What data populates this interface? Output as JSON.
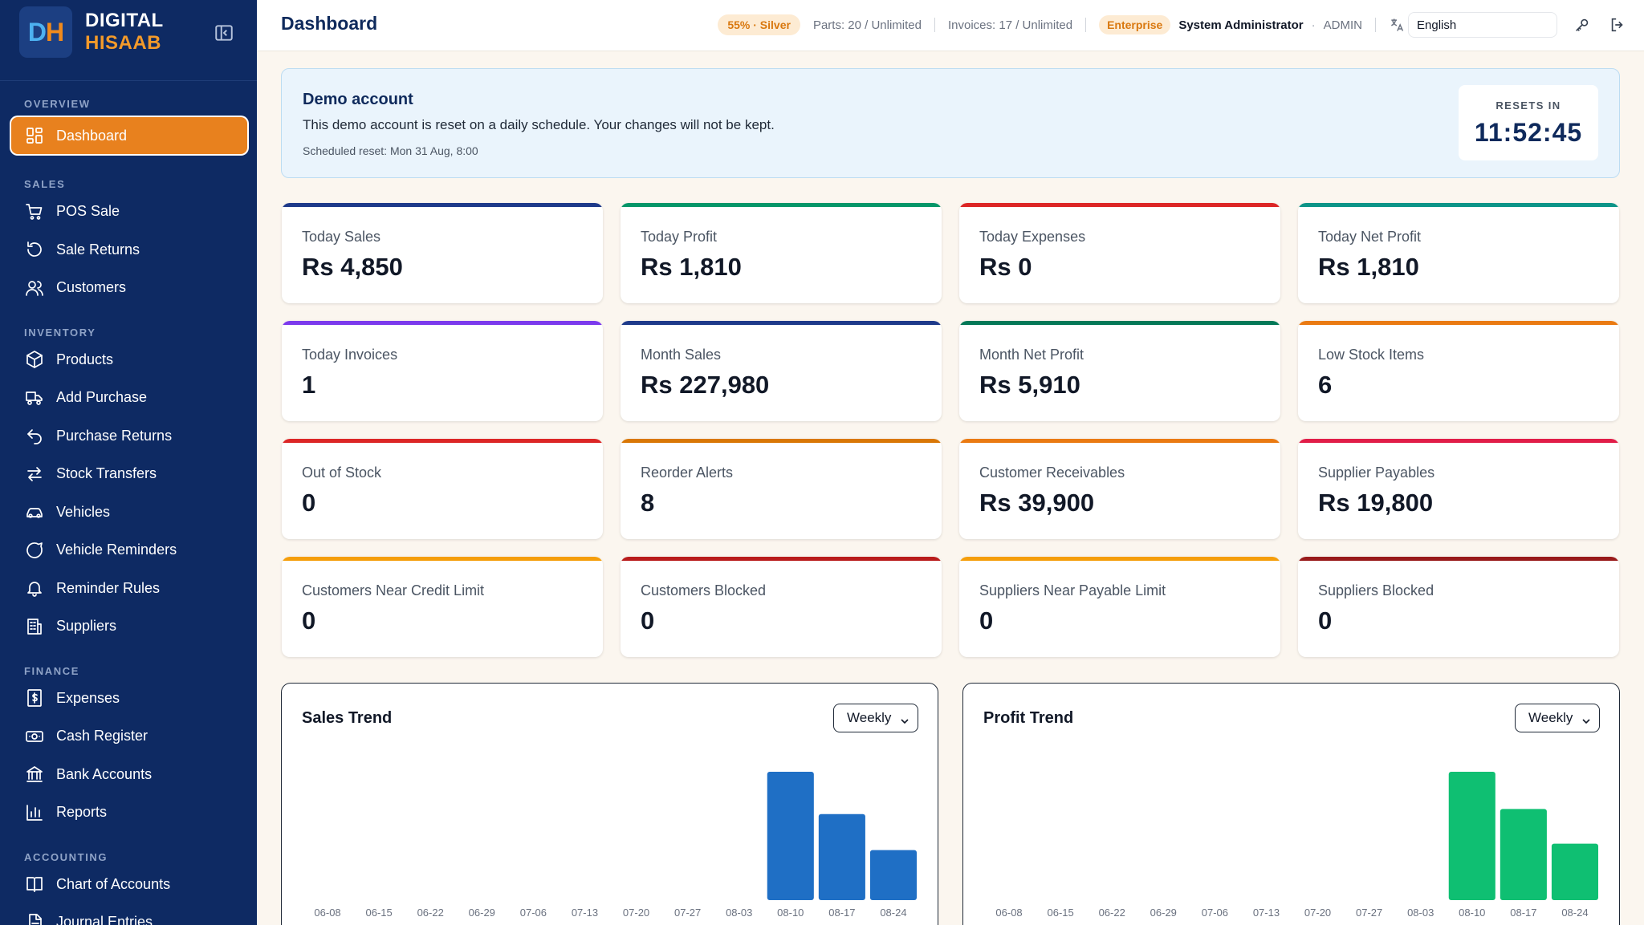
{
  "brand": {
    "logo_d": "D",
    "logo_h": "H",
    "line1": "DIGITAL",
    "line2": "HISAAB"
  },
  "sidebar": {
    "sections": [
      {
        "label": "OVERVIEW",
        "items": [
          {
            "label": "Dashboard",
            "icon": "dashboard-icon",
            "active": true
          }
        ]
      },
      {
        "label": "SALES",
        "items": [
          {
            "label": "POS Sale",
            "icon": "cart-icon"
          },
          {
            "label": "Sale Returns",
            "icon": "return-icon"
          },
          {
            "label": "Customers",
            "icon": "users-icon"
          }
        ]
      },
      {
        "label": "INVENTORY",
        "items": [
          {
            "label": "Products",
            "icon": "box-icon"
          },
          {
            "label": "Add Purchase",
            "icon": "truck-icon"
          },
          {
            "label": "Purchase Returns",
            "icon": "undo-icon"
          },
          {
            "label": "Stock Transfers",
            "icon": "transfer-icon"
          },
          {
            "label": "Vehicles",
            "icon": "car-icon"
          },
          {
            "label": "Vehicle Reminders",
            "icon": "message-icon"
          },
          {
            "label": "Reminder Rules",
            "icon": "bell-icon"
          },
          {
            "label": "Suppliers",
            "icon": "building-icon"
          }
        ]
      },
      {
        "label": "FINANCE",
        "items": [
          {
            "label": "Expenses",
            "icon": "receipt-icon"
          },
          {
            "label": "Cash Register",
            "icon": "cash-icon"
          },
          {
            "label": "Bank Accounts",
            "icon": "bank-icon"
          },
          {
            "label": "Reports",
            "icon": "bar-chart-icon"
          }
        ]
      },
      {
        "label": "ACCOUNTING",
        "items": [
          {
            "label": "Chart of Accounts",
            "icon": "book-icon"
          },
          {
            "label": "Journal Entries",
            "icon": "document-icon"
          }
        ]
      }
    ]
  },
  "header": {
    "title": "Dashboard",
    "plan_pill": "55% · Silver",
    "parts": "Parts: 20 / Unlimited",
    "invoices": "Invoices: 17 / Unlimited",
    "tier": "Enterprise",
    "user_name": "System Administrator",
    "user_role": "ADMIN",
    "language": "English"
  },
  "banner": {
    "title": "Demo account",
    "text": "This demo account is reset on a daily schedule. Your changes will not be kept.",
    "scheduled": "Scheduled reset: Mon 31 Aug, 8:00",
    "resets_label": "RESETS IN",
    "countdown": "11:52:45"
  },
  "stats": [
    {
      "label": "Today Sales",
      "value": "Rs 4,850",
      "color": "#1e3a8a"
    },
    {
      "label": "Today Profit",
      "value": "Rs 1,810",
      "color": "#059669"
    },
    {
      "label": "Today Expenses",
      "value": "Rs 0",
      "color": "#dc2626"
    },
    {
      "label": "Today Net Profit",
      "value": "Rs 1,810",
      "color": "#0d9488"
    },
    {
      "label": "Today Invoices",
      "value": "1",
      "color": "#7c3aed"
    },
    {
      "label": "Month Sales",
      "value": "Rs 227,980",
      "color": "#1e3a8a"
    },
    {
      "label": "Month Net Profit",
      "value": "Rs 5,910",
      "color": "#047857"
    },
    {
      "label": "Low Stock Items",
      "value": "6",
      "color": "#ea7a12"
    },
    {
      "label": "Out of Stock",
      "value": "0",
      "color": "#dc2626"
    },
    {
      "label": "Reorder Alerts",
      "value": "8",
      "color": "#d97706"
    },
    {
      "label": "Customer Receivables",
      "value": "Rs 39,900",
      "color": "#ea7a12"
    },
    {
      "label": "Supplier Payables",
      "value": "Rs 19,800",
      "color": "#e11d48"
    },
    {
      "label": "Customers Near Credit Limit",
      "value": "0",
      "color": "#f59e0b"
    },
    {
      "label": "Customers Blocked",
      "value": "0",
      "color": "#b91c1c"
    },
    {
      "label": "Suppliers Near Payable Limit",
      "value": "0",
      "color": "#f59e0b"
    },
    {
      "label": "Suppliers Blocked",
      "value": "0",
      "color": "#991b1b"
    }
  ],
  "chart_data": [
    {
      "type": "bar",
      "title": "Sales Trend",
      "period": "Weekly",
      "categories": [
        "06-08",
        "06-15",
        "06-22",
        "06-29",
        "07-06",
        "07-13",
        "07-20",
        "07-27",
        "08-03",
        "08-10",
        "08-17",
        "08-24"
      ],
      "values": [
        0,
        0,
        0,
        0,
        0,
        0,
        0,
        0,
        0,
        100,
        67,
        39
      ],
      "color": "#1f6fc5",
      "grid": false,
      "legend": "none"
    },
    {
      "type": "bar",
      "title": "Profit Trend",
      "period": "Weekly",
      "categories": [
        "06-08",
        "06-15",
        "06-22",
        "06-29",
        "07-06",
        "07-13",
        "07-20",
        "07-27",
        "08-03",
        "08-10",
        "08-17",
        "08-24"
      ],
      "values": [
        0,
        0,
        0,
        0,
        0,
        0,
        0,
        0,
        0,
        100,
        71,
        44
      ],
      "color": "#0fbf72",
      "grid": false,
      "legend": "none"
    }
  ]
}
